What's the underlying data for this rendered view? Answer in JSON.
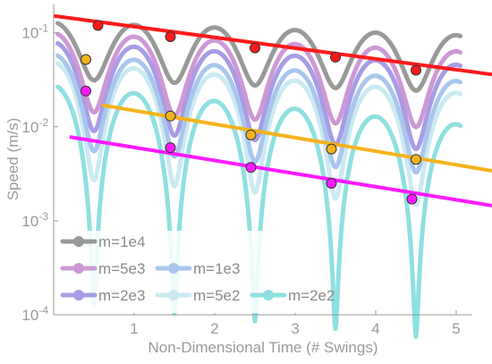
{
  "chart_data": {
    "type": "line",
    "title": "",
    "xlabel": "Non-Dimensional Time (# Swings)",
    "ylabel": "Speed (m/s)",
    "xlim": [
      0.0,
      5.2
    ],
    "ylim": [
      0.0001,
      0.2
    ],
    "yscale": "log",
    "grid": false,
    "legend_position": "bottom-left",
    "x_ticks": [
      {
        "value": 1,
        "label": "1"
      },
      {
        "value": 2,
        "label": "2"
      },
      {
        "value": 3,
        "label": "3"
      },
      {
        "value": 4,
        "label": "4"
      },
      {
        "value": 5,
        "label": "5"
      }
    ],
    "y_ticks": [
      {
        "value": 0.1,
        "base": "10",
        "exp": "-1"
      },
      {
        "value": 0.01,
        "base": "10",
        "exp": "-2"
      },
      {
        "value": 0.001,
        "base": "10",
        "exp": "-3"
      },
      {
        "value": 0.0001,
        "base": "10",
        "exp": "-4"
      }
    ],
    "series": [
      {
        "name": "m=1e4",
        "color": "#999999",
        "peak": 0.125,
        "decay": 0.0315,
        "min_ratio": 0.25
      },
      {
        "name": "m=5e3",
        "color": "#cc99d6",
        "peak": 0.095,
        "decay": 0.045,
        "min_ratio": 0.15
      },
      {
        "name": "m=1e3",
        "color": "#a9c6ee",
        "peak": 0.055,
        "decay": 0.065,
        "min_ratio": 0.1
      },
      {
        "name": "m=2e3",
        "color": "#a89ce6",
        "peak": 0.075,
        "decay": 0.055,
        "min_ratio": 0.12
      },
      {
        "name": "m=5e2",
        "color": "#cbeaf2",
        "peak": 0.045,
        "decay": 0.075,
        "min_ratio": 0.06
      },
      {
        "name": "m=2e2",
        "color": "#8fe0e0",
        "peak": 0.025,
        "decay": 0.095,
        "min_ratio": 0.005
      }
    ],
    "fit_lines": [
      {
        "color": "#ff1a1a",
        "x": [
          -0.2,
          5.2
        ],
        "y": [
          0.16,
          0.036
        ]
      },
      {
        "color": "#f5b21b",
        "x": [
          0.6,
          5.2
        ],
        "y": [
          0.017,
          0.0034
        ]
      },
      {
        "color": "#ff1aff",
        "x": [
          0.2,
          5.2
        ],
        "y": [
          0.0078,
          0.00145
        ]
      }
    ],
    "markers": [
      {
        "x": 0.55,
        "y": 0.12,
        "color": "#ff1a1a"
      },
      {
        "x": 1.45,
        "y": 0.091,
        "color": "#ff1a1a"
      },
      {
        "x": 2.5,
        "y": 0.069,
        "color": "#ff1a1a"
      },
      {
        "x": 3.5,
        "y": 0.055,
        "color": "#ff1a1a"
      },
      {
        "x": 4.5,
        "y": 0.04,
        "color": "#ff1a1a"
      },
      {
        "x": 0.4,
        "y": 0.052,
        "color": "#f5b21b"
      },
      {
        "x": 1.45,
        "y": 0.013,
        "color": "#f5b21b"
      },
      {
        "x": 2.45,
        "y": 0.0082,
        "color": "#f5b21b"
      },
      {
        "x": 3.45,
        "y": 0.0058,
        "color": "#f5b21b"
      },
      {
        "x": 4.5,
        "y": 0.0045,
        "color": "#f5b21b"
      },
      {
        "x": 0.4,
        "y": 0.024,
        "color": "#ff1aff"
      },
      {
        "x": 1.45,
        "y": 0.006,
        "color": "#ff1aff"
      },
      {
        "x": 2.45,
        "y": 0.0037,
        "color": "#ff1aff"
      },
      {
        "x": 3.45,
        "y": 0.0025,
        "color": "#ff1aff"
      },
      {
        "x": 4.45,
        "y": 0.0017,
        "color": "#ff1aff"
      }
    ]
  }
}
